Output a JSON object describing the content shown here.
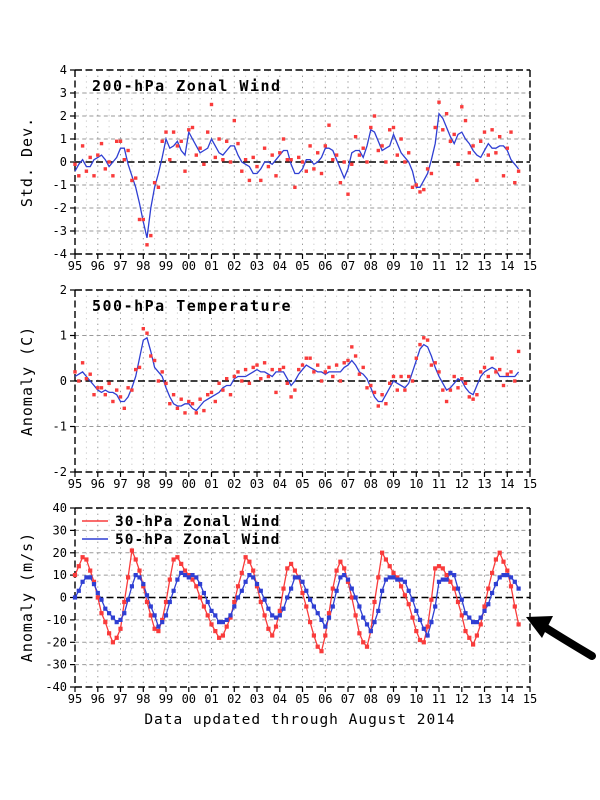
{
  "figure": {
    "caption": "Data updated through August 2014",
    "arrow_annotation": {
      "color": "#000000",
      "points_at": "latest 30-hPa zonal wind values"
    }
  },
  "chart_data": [
    {
      "type": "line+scatter",
      "title": "200-hPa Zonal Wind",
      "ylabel": "Std. Dev.",
      "ylim": [
        -4,
        4
      ],
      "yticks": [
        -4,
        -3,
        -2,
        -1,
        0,
        1,
        2,
        3,
        4
      ],
      "xlim": [
        1995,
        2015
      ],
      "xtick_labels": [
        "95",
        "96",
        "97",
        "98",
        "99",
        "00",
        "01",
        "02",
        "03",
        "04",
        "05",
        "06",
        "07",
        "08",
        "09",
        "10",
        "11",
        "12",
        "13",
        "14",
        "15"
      ],
      "x_start": 1995,
      "x_step": 0.166667,
      "grid": true,
      "zero_line": true,
      "legend": false,
      "series": [
        {
          "name": "monthly anomaly",
          "style": "scatter",
          "color": "#f93b3b",
          "values": [
            -0.1,
            -0.6,
            0.7,
            -0.4,
            0.2,
            -0.6,
            0.3,
            0.8,
            -0.3,
            0.0,
            -0.6,
            0.9,
            0.9,
            0.1,
            0.5,
            -0.8,
            -0.7,
            -2.5,
            -2.5,
            -3.6,
            -3.2,
            -0.9,
            -1.1,
            0.9,
            1.3,
            0.1,
            1.3,
            0.7,
            0.9,
            -0.4,
            1.4,
            1.5,
            0.3,
            0.6,
            -0.1,
            1.3,
            2.5,
            0.2,
            1.0,
            0.1,
            0.9,
            0.0,
            1.8,
            0.8,
            -0.4,
            0.1,
            -0.8,
            0.2,
            -0.2,
            -0.8,
            0.6,
            -0.2,
            0.3,
            -0.6,
            0.4,
            1.0,
            0.1,
            0.1,
            -1.1,
            0.2,
            0.0,
            -0.4,
            0.7,
            -0.3,
            0.4,
            -0.5,
            0.7,
            1.6,
            0.1,
            0.3,
            -0.9,
            0.0,
            -1.4,
            -0.1,
            1.1,
            0.3,
            0.6,
            0.0,
            1.5,
            2.0,
            0.5,
            0.7,
            0.0,
            1.4,
            1.5,
            0.3,
            1.0,
            0.0,
            0.4,
            -1.1,
            -1.0,
            -1.3,
            -1.2,
            -0.3,
            -0.5,
            1.5,
            2.6,
            1.4,
            2.1,
            0.9,
            1.2,
            -0.1,
            2.4,
            1.8,
            0.4,
            0.7,
            -0.8,
            0.9,
            1.3,
            0.3,
            1.4,
            0.4,
            1.1,
            -0.6,
            0.6,
            1.3,
            -0.9,
            -0.4
          ]
        },
        {
          "name": "smoothed",
          "style": "line",
          "color": "#2f3fd3",
          "values": [
            -0.4,
            -0.1,
            0.1,
            -0.2,
            -0.2,
            0.1,
            0.2,
            0.3,
            0.1,
            -0.2,
            0.0,
            0.2,
            0.6,
            0.6,
            -0.1,
            -0.6,
            -1.1,
            -1.8,
            -2.6,
            -3.3,
            -2.0,
            -1.1,
            -0.5,
            0.2,
            1.0,
            0.6,
            0.7,
            0.9,
            0.5,
            0.3,
            1.3,
            1.0,
            0.7,
            0.4,
            0.5,
            0.6,
            1.0,
            0.7,
            0.4,
            0.3,
            0.5,
            0.7,
            0.7,
            0.3,
            0.0,
            -0.1,
            -0.2,
            -0.5,
            -0.5,
            -0.3,
            0.0,
            0.0,
            -0.1,
            0.1,
            0.3,
            0.5,
            0.5,
            -0.1,
            -0.5,
            -0.5,
            -0.3,
            0.1,
            0.1,
            -0.1,
            0.0,
            0.2,
            0.6,
            0.6,
            0.5,
            0.1,
            -0.3,
            -0.7,
            -0.3,
            0.4,
            0.5,
            0.5,
            0.2,
            0.7,
            1.4,
            1.3,
            0.9,
            0.5,
            0.6,
            0.7,
            1.2,
            0.8,
            0.4,
            0.2,
            0.0,
            -0.4,
            -1.1,
            -1.1,
            -0.8,
            -0.5,
            0.1,
            0.8,
            2.1,
            1.9,
            1.5,
            1.1,
            0.8,
            1.2,
            1.3,
            1.0,
            0.8,
            0.5,
            0.3,
            0.2,
            0.5,
            0.8,
            0.6,
            0.6,
            0.7,
            0.7,
            0.5,
            0.1,
            -0.1,
            -0.3
          ]
        }
      ]
    },
    {
      "type": "line+scatter",
      "title": "500-hPa Temperature",
      "ylabel": "Anomaly (C)",
      "ylim": [
        -2,
        2
      ],
      "yticks": [
        -2,
        -1,
        0,
        1,
        2
      ],
      "xlim": [
        1995,
        2015
      ],
      "xtick_labels": [
        "95",
        "96",
        "97",
        "98",
        "99",
        "00",
        "01",
        "02",
        "03",
        "04",
        "05",
        "06",
        "07",
        "08",
        "09",
        "10",
        "11",
        "12",
        "13",
        "14",
        "15"
      ],
      "x_start": 1995,
      "x_step": 0.166667,
      "grid": true,
      "zero_line": true,
      "legend": false,
      "series": [
        {
          "name": "monthly anomaly",
          "style": "scatter",
          "color": "#f93b3b",
          "values": [
            0.2,
            0.0,
            0.4,
            0.05,
            0.15,
            -0.3,
            -0.15,
            -0.15,
            -0.3,
            -0.05,
            -0.45,
            -0.2,
            -0.35,
            -0.6,
            -0.15,
            -0.2,
            0.25,
            0.3,
            1.15,
            1.05,
            0.55,
            0.45,
            0.0,
            0.2,
            -0.05,
            -0.5,
            -0.3,
            -0.6,
            -0.4,
            -0.7,
            -0.45,
            -0.5,
            -0.7,
            -0.4,
            -0.65,
            -0.3,
            -0.25,
            -0.45,
            -0.05,
            -0.2,
            0.05,
            -0.3,
            0.1,
            0.2,
            0.0,
            0.25,
            -0.05,
            0.3,
            0.35,
            0.05,
            0.4,
            0.1,
            0.25,
            -0.25,
            0.25,
            0.3,
            -0.05,
            -0.35,
            -0.2,
            0.25,
            0.35,
            0.5,
            0.5,
            0.2,
            0.35,
            0.0,
            0.2,
            0.3,
            0.1,
            0.35,
            0.0,
            0.4,
            0.45,
            0.75,
            0.55,
            0.15,
            0.3,
            -0.15,
            -0.1,
            -0.25,
            -0.55,
            -0.3,
            -0.5,
            -0.05,
            0.1,
            -0.2,
            0.1,
            -0.2,
            0.1,
            0.0,
            0.5,
            0.8,
            0.95,
            0.9,
            0.35,
            0.4,
            0.2,
            -0.2,
            -0.45,
            -0.2,
            0.1,
            -0.15,
            0.05,
            -0.05,
            -0.35,
            -0.4,
            -0.3,
            0.2,
            0.3,
            0.1,
            0.5,
            0.2,
            0.25,
            -0.1,
            0.15,
            0.2,
            0.0,
            0.65
          ]
        },
        {
          "name": "smoothed",
          "style": "line",
          "color": "#2f3fd3",
          "values": [
            0.1,
            0.15,
            0.2,
            0.1,
            0.0,
            -0.1,
            -0.2,
            -0.25,
            -0.2,
            -0.25,
            -0.25,
            -0.3,
            -0.45,
            -0.45,
            -0.35,
            -0.15,
            0.1,
            0.5,
            0.9,
            0.95,
            0.65,
            0.3,
            0.2,
            0.1,
            -0.15,
            -0.35,
            -0.5,
            -0.55,
            -0.55,
            -0.5,
            -0.5,
            -0.6,
            -0.65,
            -0.55,
            -0.45,
            -0.4,
            -0.35,
            -0.3,
            -0.25,
            -0.15,
            -0.1,
            -0.1,
            0.05,
            0.1,
            0.1,
            0.1,
            0.15,
            0.2,
            0.25,
            0.2,
            0.2,
            0.15,
            0.1,
            0.2,
            0.2,
            0.2,
            0.05,
            -0.1,
            0.0,
            0.15,
            0.25,
            0.35,
            0.3,
            0.25,
            0.2,
            0.2,
            0.15,
            0.2,
            0.2,
            0.2,
            0.2,
            0.3,
            0.35,
            0.45,
            0.35,
            0.2,
            0.15,
            0.05,
            -0.15,
            -0.35,
            -0.45,
            -0.45,
            -0.3,
            -0.15,
            0.0,
            -0.05,
            -0.1,
            -0.15,
            -0.05,
            0.2,
            0.45,
            0.7,
            0.8,
            0.75,
            0.55,
            0.3,
            0.1,
            -0.05,
            -0.2,
            -0.15,
            -0.05,
            0.05,
            0.0,
            -0.15,
            -0.25,
            -0.3,
            -0.1,
            0.1,
            0.2,
            0.25,
            0.3,
            0.25,
            0.1,
            0.1,
            0.1,
            0.1,
            0.1,
            0.2
          ]
        }
      ]
    },
    {
      "type": "line+scatter",
      "title": "",
      "ylabel": "Anomaly (m/s)",
      "ylim": [
        -40,
        40
      ],
      "yticks": [
        -40,
        -30,
        -20,
        -10,
        0,
        10,
        20,
        30,
        40
      ],
      "xlim": [
        1995,
        2015
      ],
      "xtick_labels": [
        "95",
        "96",
        "97",
        "98",
        "99",
        "00",
        "01",
        "02",
        "03",
        "04",
        "05",
        "06",
        "07",
        "08",
        "09",
        "10",
        "11",
        "12",
        "13",
        "14",
        "15"
      ],
      "x_start": 1995,
      "x_step": 0.166667,
      "grid": true,
      "zero_line": true,
      "legend": true,
      "series": [
        {
          "name": "30-hPa Zonal Wind",
          "style": "both",
          "color": "#f93b3b",
          "values": [
            10,
            14,
            18,
            17,
            12,
            7,
            0,
            -7,
            -11,
            -16,
            -20,
            -18,
            -14,
            -2,
            9,
            21,
            17,
            12,
            5,
            -2,
            -8,
            -14,
            -15,
            -10,
            -2,
            8,
            17,
            18,
            15,
            12,
            10,
            8,
            5,
            0,
            -4,
            -8,
            -12,
            -15,
            -18,
            -17,
            -13,
            -9,
            -2,
            5,
            11,
            18,
            16,
            12,
            5,
            -2,
            -8,
            -14,
            -17,
            -13,
            -6,
            4,
            13,
            15,
            12,
            9,
            2,
            -4,
            -11,
            -17,
            -22,
            -24,
            -17,
            -7,
            4,
            12,
            16,
            13,
            7,
            0,
            -8,
            -16,
            -20,
            -22,
            -15,
            -2,
            9,
            20,
            17,
            14,
            11,
            9,
            5,
            1,
            -3,
            -9,
            -15,
            -19,
            -20,
            -13,
            -1,
            13,
            14,
            13,
            10,
            7,
            4,
            -2,
            -8,
            -15,
            -18,
            -21,
            -17,
            -12,
            -4,
            4,
            11,
            17,
            20,
            16,
            12,
            5,
            -4,
            -12
          ]
        },
        {
          "name": "50-hPa Zonal Wind",
          "style": "both",
          "color": "#2f3fd3",
          "values": [
            0,
            3,
            7,
            9,
            9,
            6,
            2,
            -1,
            -5,
            -7,
            -9,
            -11,
            -10,
            -7,
            -1,
            5,
            10,
            9,
            6,
            1,
            -4,
            -8,
            -13,
            -11,
            -8,
            -2,
            3,
            8,
            11,
            10,
            9,
            10,
            9,
            6,
            2,
            -2,
            -6,
            -8,
            -11,
            -11,
            -10,
            -8,
            -4,
            0,
            3,
            7,
            10,
            9,
            6,
            3,
            -1,
            -5,
            -8,
            -9,
            -8,
            -5,
            0,
            4,
            9,
            9,
            7,
            3,
            -1,
            -4,
            -7,
            -10,
            -13,
            -9,
            -4,
            3,
            9,
            10,
            8,
            4,
            0,
            -4,
            -9,
            -12,
            -15,
            -11,
            -6,
            3,
            8,
            9,
            9,
            8,
            8,
            7,
            3,
            -1,
            -6,
            -10,
            -14,
            -17,
            -11,
            -4,
            7,
            8,
            8,
            11,
            10,
            4,
            -1,
            -7,
            -9,
            -11,
            -11,
            -9,
            -6,
            -3,
            2,
            6,
            9,
            10,
            10,
            9,
            7,
            4
          ]
        }
      ]
    }
  ]
}
